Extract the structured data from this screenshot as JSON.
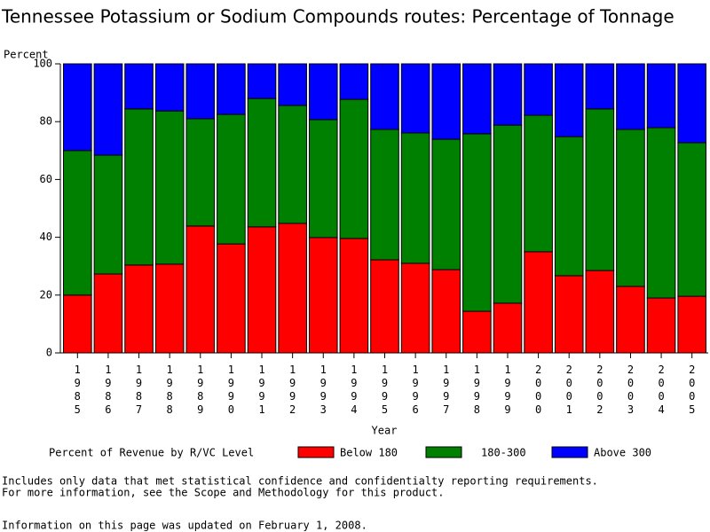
{
  "chart_data": {
    "type": "stacked_bar",
    "title": "Tennessee Potassium or Sodium Compounds routes: Percentage of Tonnage",
    "y_label": "Percent",
    "x_label": "Year",
    "categories": [
      "1985",
      "1986",
      "1987",
      "1988",
      "1989",
      "1990",
      "1991",
      "1992",
      "1993",
      "1994",
      "1995",
      "1996",
      "1997",
      "1998",
      "1999",
      "2000",
      "2001",
      "2002",
      "2003",
      "2004",
      "2005"
    ],
    "series": [
      {
        "name": "Below 180",
        "color": "#ff0000",
        "values": [
          20.0,
          27.3,
          30.4,
          30.7,
          43.9,
          37.7,
          43.6,
          44.8,
          39.9,
          39.6,
          32.2,
          31.0,
          28.8,
          14.4,
          17.2,
          35.0,
          26.7,
          28.5,
          23.0,
          19.0,
          19.6
        ]
      },
      {
        "name": "180-300",
        "color": "#008000",
        "values": [
          50.0,
          41.1,
          54.0,
          53.0,
          37.1,
          44.8,
          44.4,
          40.8,
          40.8,
          48.1,
          45.1,
          45.1,
          45.1,
          61.4,
          61.6,
          47.2,
          48.1,
          55.9,
          54.3,
          58.9,
          53.1
        ]
      },
      {
        "name": "Above 300",
        "color": "#0000ff",
        "values": [
          30.0,
          31.6,
          15.6,
          16.3,
          19.0,
          17.5,
          12.0,
          14.4,
          19.3,
          12.3,
          22.7,
          23.9,
          26.1,
          24.2,
          21.2,
          17.8,
          25.2,
          15.6,
          22.7,
          22.1,
          27.3
        ]
      }
    ],
    "ylim": [
      0,
      100
    ],
    "yticks": [
      0,
      20,
      40,
      60,
      80,
      100
    ],
    "legend_title": "Percent of Revenue by R/VC Level",
    "notes": [
      "Includes only data that met statistical confidence and confidentialty reporting requirements.",
      "For more information, see the Scope and Methodology for this product."
    ],
    "updated": "Information on this page was updated on February 1, 2008."
  }
}
